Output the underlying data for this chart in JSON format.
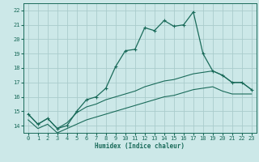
{
  "xlabel": "Humidex (Indice chaleur)",
  "ylabel": "",
  "background_color": "#cce8e8",
  "grid_color": "#aacccc",
  "line_color": "#1a6b5a",
  "xlim": [
    -0.5,
    23.5
  ],
  "ylim": [
    13.5,
    22.5
  ],
  "yticks": [
    14,
    15,
    16,
    17,
    18,
    19,
    20,
    21,
    22
  ],
  "xticks": [
    0,
    1,
    2,
    3,
    4,
    5,
    6,
    7,
    8,
    9,
    10,
    11,
    12,
    13,
    14,
    15,
    16,
    17,
    18,
    19,
    20,
    21,
    22,
    23
  ],
  "series1_x": [
    0,
    1,
    2,
    3,
    4,
    5,
    6,
    7,
    8,
    9,
    10,
    11,
    12,
    13,
    14,
    15,
    16,
    17,
    18,
    19,
    20,
    21,
    22,
    23
  ],
  "series1_y": [
    14.8,
    14.1,
    14.5,
    13.8,
    14.0,
    15.0,
    15.8,
    16.0,
    16.6,
    18.1,
    19.2,
    19.3,
    20.8,
    20.6,
    21.3,
    20.9,
    21.0,
    21.9,
    19.0,
    17.8,
    17.5,
    17.0,
    17.0,
    16.5
  ],
  "series2_x": [
    0,
    1,
    2,
    3,
    4,
    5,
    6,
    7,
    8,
    9,
    10,
    11,
    12,
    13,
    14,
    15,
    16,
    17,
    18,
    19,
    20,
    21,
    22,
    23
  ],
  "series2_y": [
    14.8,
    14.1,
    14.5,
    13.8,
    14.2,
    14.9,
    15.3,
    15.5,
    15.8,
    16.0,
    16.2,
    16.4,
    16.7,
    16.9,
    17.1,
    17.2,
    17.4,
    17.6,
    17.7,
    17.8,
    17.5,
    17.0,
    17.0,
    16.5
  ],
  "series3_x": [
    0,
    1,
    2,
    3,
    4,
    5,
    6,
    7,
    8,
    9,
    10,
    11,
    12,
    13,
    14,
    15,
    16,
    17,
    18,
    19,
    20,
    21,
    22,
    23
  ],
  "series3_y": [
    14.4,
    13.8,
    14.1,
    13.5,
    13.8,
    14.1,
    14.4,
    14.6,
    14.8,
    15.0,
    15.2,
    15.4,
    15.6,
    15.8,
    16.0,
    16.1,
    16.3,
    16.5,
    16.6,
    16.7,
    16.4,
    16.2,
    16.2,
    16.2
  ]
}
